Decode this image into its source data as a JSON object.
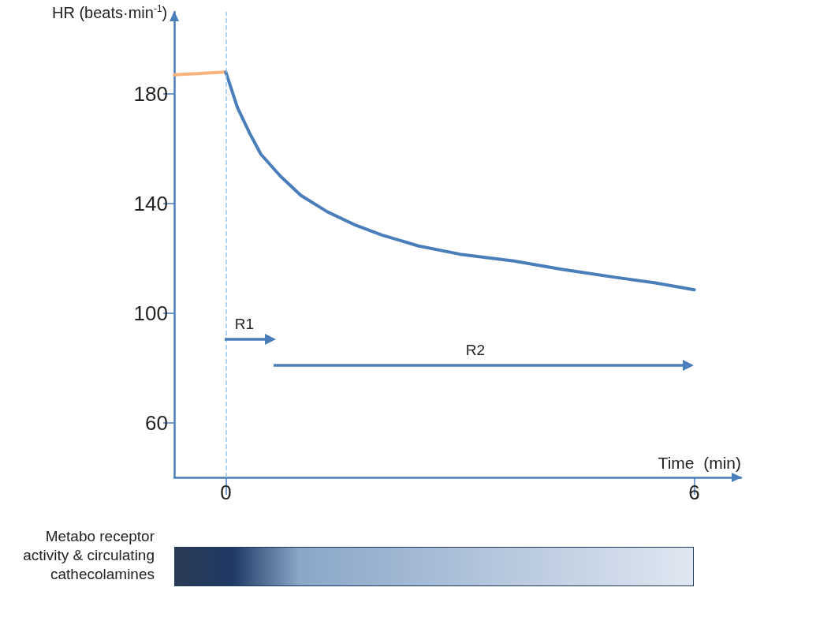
{
  "chart_data": {
    "type": "line",
    "xlabel": "Time  (min)",
    "ylabel": "HR (beats·min$^{-1}$)",
    "xlim": [
      -0.66,
      6.6
    ],
    "ylim": [
      40,
      210
    ],
    "xticks": [
      0,
      6
    ],
    "yticks": [
      60,
      100,
      140,
      180
    ],
    "marker": "none",
    "line_style": "solid",
    "series": [
      {
        "color": "#f8b27c",
        "x": [
          -0.66,
          0
        ],
        "values": [
          187,
          188
        ]
      },
      {
        "color": "#4a7ebb",
        "x": [
          0,
          0.15,
          0.3,
          0.45,
          0.7,
          0.96,
          1.3,
          1.67,
          2.0,
          2.47,
          3.0,
          3.69,
          4.3,
          5.0,
          5.5,
          6.0
        ],
        "values": [
          188,
          175,
          166,
          158,
          150,
          143,
          137,
          132,
          128.5,
          124.5,
          121.5,
          119,
          116,
          113,
          111,
          108.5
        ]
      }
    ],
    "ref_lines": [
      {
        "axis": "x",
        "value": 0,
        "color": "#9dc3e6",
        "line_style": "dashed"
      }
    ],
    "annotations": [
      "R1",
      "R2",
      "Metabo receptor activity & circulating cathecolamines"
    ]
  }
}
